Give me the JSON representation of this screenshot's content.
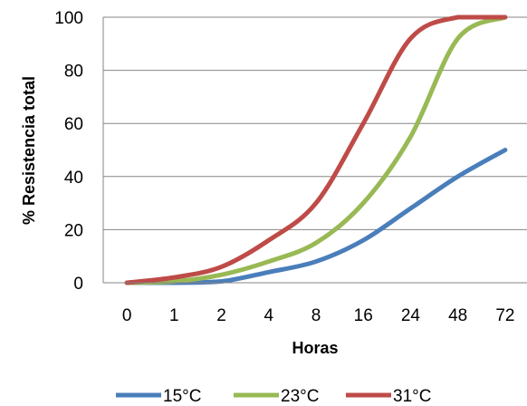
{
  "chart_data": {
    "type": "line",
    "title": "",
    "xlabel": "Horas",
    "ylabel": "% Resistencia total",
    "categories": [
      "0",
      "1",
      "2",
      "4",
      "8",
      "16",
      "24",
      "48",
      "72"
    ],
    "ylim": [
      0,
      100
    ],
    "yticks": [
      0,
      20,
      40,
      60,
      80,
      100
    ],
    "grid": true,
    "legend_position": "bottom",
    "series": [
      {
        "name": "15°C",
        "color": "#4a7ebb",
        "values": [
          0,
          0,
          0.5,
          4,
          8,
          16,
          28,
          40,
          50
        ]
      },
      {
        "name": "23°C",
        "color": "#98b954",
        "values": [
          0,
          0.5,
          3,
          8,
          15,
          30,
          55,
          92,
          100
        ]
      },
      {
        "name": "31°C",
        "color": "#be4b48",
        "values": [
          0,
          2,
          6,
          16,
          30,
          60,
          92,
          100,
          100
        ]
      }
    ]
  }
}
